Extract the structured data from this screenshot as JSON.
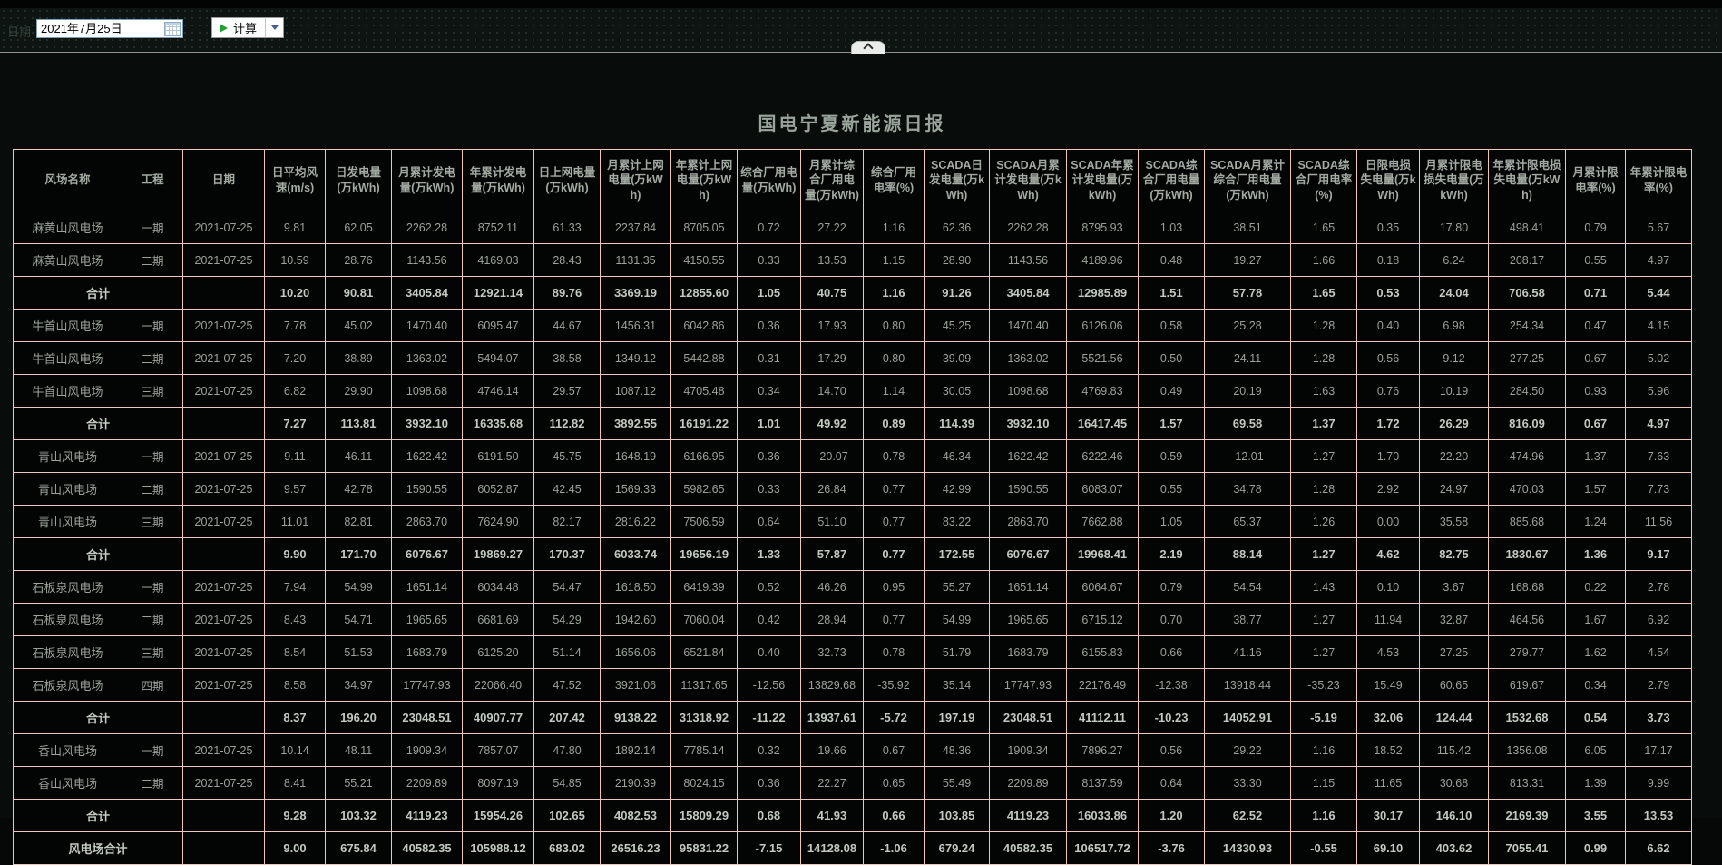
{
  "toolbar": {
    "date_label": "日期",
    "date_value": "2021年7月25日",
    "calc_label": "计算"
  },
  "icons": {
    "calendar": "calendar-icon",
    "play": "play-icon",
    "dropdown": "chevron-down-icon",
    "collapse": "chevron-up-icon"
  },
  "panel": {
    "title": "国电宁夏新能源日报"
  },
  "table": {
    "columns": [
      "风场名称",
      "工程",
      "日期",
      "日平均风速(m/s)",
      "日发电量(万kWh)",
      "月累计发电量(万kWh)",
      "年累计发电量(万kWh)",
      "日上网电量(万kWh)",
      "月累计上网电量(万kWh)",
      "年累计上网电量(万kWh)",
      "综合厂用电量(万kWh)",
      "月累计综合厂用电量(万kWh)",
      "综合厂用电率(%)",
      "SCADA日发电量(万kWh)",
      "SCADA月累计发电量(万kWh)",
      "SCADA年累计发电量(万kWh)",
      "SCADA综合厂用电量(万kWh)",
      "SCADA月累计综合厂用电量(万kWh)",
      "SCADA综合厂用电率(%)",
      "日限电损失电量(万kWh)",
      "月累计限电损失电量(万kWh)",
      "年累计限电损失电量(万kWh)",
      "月累计限电率(%)",
      "年累计限电率(%)"
    ],
    "rows": [
      {
        "type": "data",
        "name": "麻黄山风电场",
        "phase": "一期",
        "date": "2021-07-25",
        "values": [
          "9.81",
          "62.05",
          "2262.28",
          "8752.11",
          "61.33",
          "2237.84",
          "8705.05",
          "0.72",
          "27.22",
          "1.16",
          "62.36",
          "2262.28",
          "8795.93",
          "1.03",
          "38.51",
          "1.65",
          "0.35",
          "17.80",
          "498.41",
          "0.79",
          "5.67"
        ]
      },
      {
        "type": "data",
        "name": "麻黄山风电场",
        "phase": "二期",
        "date": "2021-07-25",
        "values": [
          "10.59",
          "28.76",
          "1143.56",
          "4169.03",
          "28.43",
          "1131.35",
          "4150.55",
          "0.33",
          "13.53",
          "1.15",
          "28.90",
          "1143.56",
          "4189.96",
          "0.48",
          "19.27",
          "1.66",
          "0.18",
          "6.24",
          "208.17",
          "0.55",
          "4.97"
        ]
      },
      {
        "type": "subtotal",
        "name": "合计",
        "phase": "",
        "date": "",
        "values": [
          "10.20",
          "90.81",
          "3405.84",
          "12921.14",
          "89.76",
          "3369.19",
          "12855.60",
          "1.05",
          "40.75",
          "1.16",
          "91.26",
          "3405.84",
          "12985.89",
          "1.51",
          "57.78",
          "1.65",
          "0.53",
          "24.04",
          "706.58",
          "0.71",
          "5.44"
        ]
      },
      {
        "type": "data",
        "name": "牛首山风电场",
        "phase": "一期",
        "date": "2021-07-25",
        "values": [
          "7.78",
          "45.02",
          "1470.40",
          "6095.47",
          "44.67",
          "1456.31",
          "6042.86",
          "0.36",
          "17.93",
          "0.80",
          "45.25",
          "1470.40",
          "6126.06",
          "0.58",
          "25.28",
          "1.28",
          "0.40",
          "6.98",
          "254.34",
          "0.47",
          "4.15"
        ]
      },
      {
        "type": "data",
        "name": "牛首山风电场",
        "phase": "二期",
        "date": "2021-07-25",
        "values": [
          "7.20",
          "38.89",
          "1363.02",
          "5494.07",
          "38.58",
          "1349.12",
          "5442.88",
          "0.31",
          "17.29",
          "0.80",
          "39.09",
          "1363.02",
          "5521.56",
          "0.50",
          "24.11",
          "1.28",
          "0.56",
          "9.12",
          "277.25",
          "0.67",
          "5.02"
        ]
      },
      {
        "type": "data",
        "name": "牛首山风电场",
        "phase": "三期",
        "date": "2021-07-25",
        "values": [
          "6.82",
          "29.90",
          "1098.68",
          "4746.14",
          "29.57",
          "1087.12",
          "4705.48",
          "0.34",
          "14.70",
          "1.14",
          "30.05",
          "1098.68",
          "4769.83",
          "0.49",
          "20.19",
          "1.63",
          "0.76",
          "10.19",
          "284.50",
          "0.93",
          "5.96"
        ]
      },
      {
        "type": "subtotal",
        "name": "合计",
        "phase": "",
        "date": "",
        "values": [
          "7.27",
          "113.81",
          "3932.10",
          "16335.68",
          "112.82",
          "3892.55",
          "16191.22",
          "1.01",
          "49.92",
          "0.89",
          "114.39",
          "3932.10",
          "16417.45",
          "1.57",
          "69.58",
          "1.37",
          "1.72",
          "26.29",
          "816.09",
          "0.67",
          "4.97"
        ]
      },
      {
        "type": "data",
        "name": "青山风电场",
        "phase": "一期",
        "date": "2021-07-25",
        "values": [
          "9.11",
          "46.11",
          "1622.42",
          "6191.50",
          "45.75",
          "1648.19",
          "6166.95",
          "0.36",
          "-20.07",
          "0.78",
          "46.34",
          "1622.42",
          "6222.46",
          "0.59",
          "-12.01",
          "1.27",
          "1.70",
          "22.20",
          "474.96",
          "1.37",
          "7.63"
        ]
      },
      {
        "type": "data",
        "name": "青山风电场",
        "phase": "二期",
        "date": "2021-07-25",
        "values": [
          "9.57",
          "42.78",
          "1590.55",
          "6052.87",
          "42.45",
          "1569.33",
          "5982.65",
          "0.33",
          "26.84",
          "0.77",
          "42.99",
          "1590.55",
          "6083.07",
          "0.55",
          "34.78",
          "1.28",
          "2.92",
          "24.97",
          "470.03",
          "1.57",
          "7.73"
        ]
      },
      {
        "type": "data",
        "name": "青山风电场",
        "phase": "三期",
        "date": "2021-07-25",
        "values": [
          "11.01",
          "82.81",
          "2863.70",
          "7624.90",
          "82.17",
          "2816.22",
          "7506.59",
          "0.64",
          "51.10",
          "0.77",
          "83.22",
          "2863.70",
          "7662.88",
          "1.05",
          "65.37",
          "1.26",
          "0.00",
          "35.58",
          "885.68",
          "1.24",
          "11.56"
        ]
      },
      {
        "type": "subtotal",
        "name": "合计",
        "phase": "",
        "date": "",
        "values": [
          "9.90",
          "171.70",
          "6076.67",
          "19869.27",
          "170.37",
          "6033.74",
          "19656.19",
          "1.33",
          "57.87",
          "0.77",
          "172.55",
          "6076.67",
          "19968.41",
          "2.19",
          "88.14",
          "1.27",
          "4.62",
          "82.75",
          "1830.67",
          "1.36",
          "9.17"
        ]
      },
      {
        "type": "data",
        "name": "石板泉风电场",
        "phase": "一期",
        "date": "2021-07-25",
        "values": [
          "7.94",
          "54.99",
          "1651.14",
          "6034.48",
          "54.47",
          "1618.50",
          "6419.39",
          "0.52",
          "46.26",
          "0.95",
          "55.27",
          "1651.14",
          "6064.67",
          "0.79",
          "54.54",
          "1.43",
          "0.10",
          "3.67",
          "168.68",
          "0.22",
          "2.78"
        ]
      },
      {
        "type": "data",
        "name": "石板泉风电场",
        "phase": "二期",
        "date": "2021-07-25",
        "values": [
          "8.43",
          "54.71",
          "1965.65",
          "6681.69",
          "54.29",
          "1942.60",
          "7060.04",
          "0.42",
          "28.94",
          "0.77",
          "54.99",
          "1965.65",
          "6715.12",
          "0.70",
          "38.77",
          "1.27",
          "11.94",
          "32.87",
          "464.56",
          "1.67",
          "6.92"
        ]
      },
      {
        "type": "data",
        "name": "石板泉风电场",
        "phase": "三期",
        "date": "2021-07-25",
        "values": [
          "8.54",
          "51.53",
          "1683.79",
          "6125.20",
          "51.14",
          "1656.06",
          "6521.84",
          "0.40",
          "32.73",
          "0.78",
          "51.79",
          "1683.79",
          "6155.83",
          "0.66",
          "41.16",
          "1.27",
          "4.53",
          "27.25",
          "279.77",
          "1.62",
          "4.54"
        ]
      },
      {
        "type": "data",
        "name": "石板泉风电场",
        "phase": "四期",
        "date": "2021-07-25",
        "values": [
          "8.58",
          "34.97",
          "17747.93",
          "22066.40",
          "47.52",
          "3921.06",
          "11317.65",
          "-12.56",
          "13829.68",
          "-35.92",
          "35.14",
          "17747.93",
          "22176.49",
          "-12.38",
          "13918.44",
          "-35.23",
          "15.49",
          "60.65",
          "619.67",
          "0.34",
          "2.79"
        ]
      },
      {
        "type": "subtotal",
        "name": "合计",
        "phase": "",
        "date": "",
        "values": [
          "8.37",
          "196.20",
          "23048.51",
          "40907.77",
          "207.42",
          "9138.22",
          "31318.92",
          "-11.22",
          "13937.61",
          "-5.72",
          "197.19",
          "23048.51",
          "41112.11",
          "-10.23",
          "14052.91",
          "-5.19",
          "32.06",
          "124.44",
          "1532.68",
          "0.54",
          "3.73"
        ]
      },
      {
        "type": "data",
        "name": "香山风电场",
        "phase": "一期",
        "date": "2021-07-25",
        "values": [
          "10.14",
          "48.11",
          "1909.34",
          "7857.07",
          "47.80",
          "1892.14",
          "7785.14",
          "0.32",
          "19.66",
          "0.67",
          "48.36",
          "1909.34",
          "7896.27",
          "0.56",
          "29.22",
          "1.16",
          "18.52",
          "115.42",
          "1356.08",
          "6.05",
          "17.17"
        ]
      },
      {
        "type": "data",
        "name": "香山风电场",
        "phase": "二期",
        "date": "2021-07-25",
        "values": [
          "8.41",
          "55.21",
          "2209.89",
          "8097.19",
          "54.85",
          "2190.39",
          "8024.15",
          "0.36",
          "22.27",
          "0.65",
          "55.49",
          "2209.89",
          "8137.59",
          "0.64",
          "33.30",
          "1.15",
          "11.65",
          "30.68",
          "813.31",
          "1.39",
          "9.99"
        ]
      },
      {
        "type": "subtotal",
        "name": "合计",
        "phase": "",
        "date": "",
        "values": [
          "9.28",
          "103.32",
          "4119.23",
          "15954.26",
          "102.65",
          "4082.53",
          "15809.29",
          "0.68",
          "41.93",
          "0.66",
          "103.85",
          "4119.23",
          "16033.86",
          "1.20",
          "62.52",
          "1.16",
          "30.17",
          "146.10",
          "2169.39",
          "3.55",
          "13.53"
        ]
      },
      {
        "type": "grand",
        "name": "风电场合计",
        "phase": "",
        "date": "",
        "values": [
          "9.00",
          "675.84",
          "40582.35",
          "105988.12",
          "683.02",
          "26516.23",
          "95831.22",
          "-7.15",
          "14128.08",
          "-1.06",
          "679.24",
          "40582.35",
          "106517.72",
          "-3.76",
          "14330.93",
          "-0.55",
          "69.10",
          "403.62",
          "7055.41",
          "0.99",
          "6.62"
        ]
      }
    ]
  }
}
